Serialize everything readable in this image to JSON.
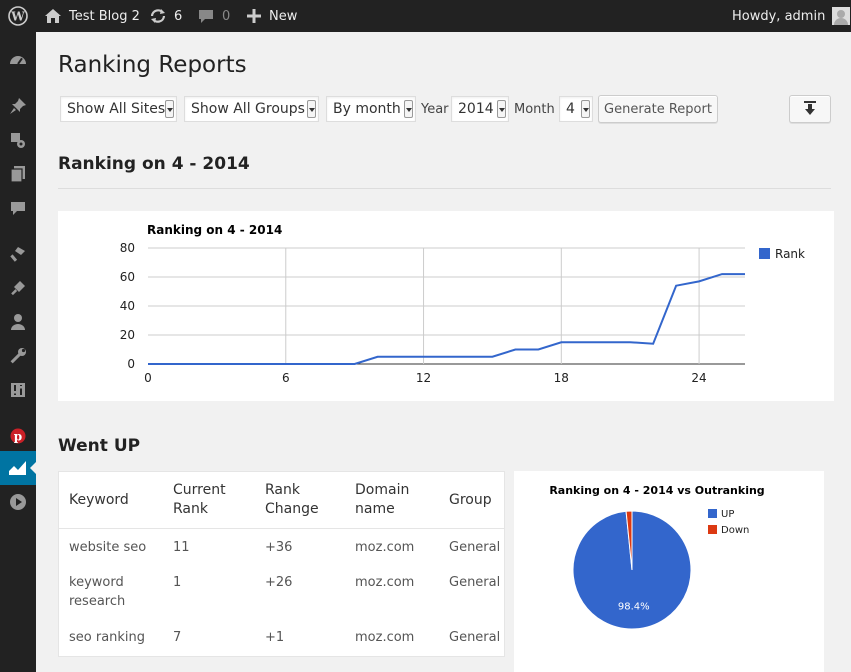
{
  "adminbar": {
    "site_name": "Test Blog 2",
    "updates_count": "6",
    "comments_count": "0",
    "new_label": "New",
    "howdy": "Howdy, admin"
  },
  "sidebar": {
    "icons": [
      "dashboard-icon",
      "pin-icon",
      "media-icon",
      "pages-icon",
      "comments-icon",
      "appearance-icon",
      "plugins-icon",
      "users-icon",
      "tools-icon",
      "settings-icon",
      "pinterest-icon",
      "ranking-icon",
      "play-icon"
    ]
  },
  "page": {
    "title": "Ranking Reports"
  },
  "filters": {
    "sites": "Show All Sites",
    "groups": "Show All Groups",
    "period": "By month",
    "year_label": "Year",
    "year": "2014",
    "month_label": "Month",
    "month": "4",
    "generate_label": "Generate Report"
  },
  "section_ranking": "Ranking on 4 - 2014",
  "section_went_up": "Went UP",
  "colors": {
    "series": "#3366cc",
    "down": "#dc3912",
    "accent": "#0074a2"
  },
  "chart_data": [
    {
      "type": "line",
      "title": "Ranking on 4 - 2014",
      "xlabel": "",
      "ylabel": "",
      "xlim": [
        0,
        26
      ],
      "ylim": [
        0,
        80
      ],
      "x_ticks": [
        0,
        6,
        12,
        18,
        24
      ],
      "y_ticks": [
        0,
        20,
        40,
        60,
        80
      ],
      "grid": true,
      "legend": "right",
      "series": [
        {
          "name": "Rank",
          "x": [
            0,
            1,
            2,
            3,
            4,
            5,
            6,
            7,
            8,
            9,
            10,
            11,
            12,
            13,
            14,
            15,
            16,
            17,
            18,
            19,
            20,
            21,
            22,
            23,
            24,
            25,
            26
          ],
          "values": [
            0,
            0,
            0,
            0,
            0,
            0,
            0,
            0,
            0,
            0,
            5,
            5,
            5,
            5,
            5,
            5,
            10,
            10,
            15,
            15,
            15,
            15,
            14,
            54,
            57,
            62,
            62
          ]
        }
      ]
    },
    {
      "type": "pie",
      "title": "Ranking on 4 - 2014 vs Outranking",
      "legend": "right",
      "labels": [
        "UP",
        "Down"
      ],
      "values": [
        98.4,
        1.6
      ],
      "data_labels": [
        "98.4%"
      ]
    }
  ],
  "table": {
    "headers": [
      [
        "Keyword"
      ],
      [
        "Current",
        "Rank"
      ],
      [
        "Rank",
        "Change"
      ],
      [
        "Domain",
        "name"
      ],
      [
        "Group"
      ]
    ],
    "rows": [
      {
        "keyword": [
          "website seo"
        ],
        "current": "11",
        "change": "+36",
        "domain": "moz.com",
        "group": "General"
      },
      {
        "keyword": [
          "keyword",
          "research"
        ],
        "current": "1",
        "change": "+26",
        "domain": "moz.com",
        "group": "General"
      },
      {
        "keyword": [
          "seo ranking"
        ],
        "current": "7",
        "change": "+1",
        "domain": "moz.com",
        "group": "General"
      }
    ]
  }
}
